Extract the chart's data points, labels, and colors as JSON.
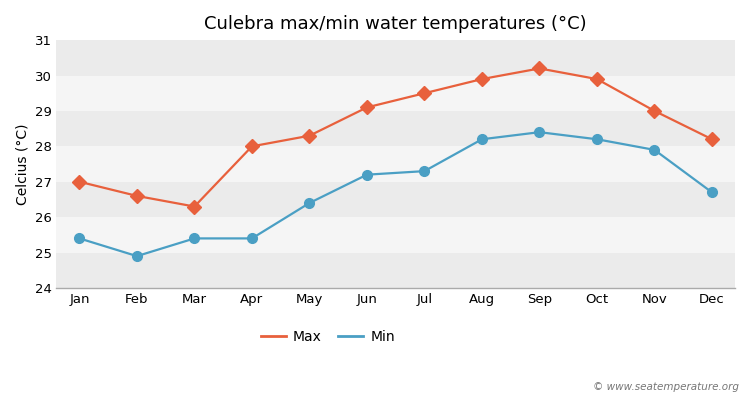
{
  "months": [
    "Jan",
    "Feb",
    "Mar",
    "Apr",
    "May",
    "Jun",
    "Jul",
    "Aug",
    "Sep",
    "Oct",
    "Nov",
    "Dec"
  ],
  "max_temps": [
    27.0,
    26.6,
    26.3,
    28.0,
    28.3,
    29.1,
    29.5,
    29.9,
    30.2,
    29.9,
    29.0,
    28.2
  ],
  "min_temps": [
    25.4,
    24.9,
    25.4,
    25.4,
    26.4,
    27.2,
    27.3,
    28.2,
    28.4,
    28.2,
    27.9,
    26.7
  ],
  "max_color": "#e8603c",
  "min_color": "#4a9fc4",
  "title": "Culebra max/min water temperatures (°C)",
  "ylabel": "Celcius (°C)",
  "ylim": [
    24,
    31
  ],
  "yticks": [
    24,
    25,
    26,
    27,
    28,
    29,
    30,
    31
  ],
  "fig_bg_color": "#ffffff",
  "plot_bg_color": "#ffffff",
  "band_color_light": "#ebebeb",
  "band_color_dark": "#f5f5f5",
  "legend_max": "Max",
  "legend_min": "Min",
  "watermark": "© www.seatemperature.org",
  "title_fontsize": 13,
  "axis_label_fontsize": 10,
  "tick_fontsize": 9.5,
  "marker_size": 7,
  "line_width": 1.6
}
